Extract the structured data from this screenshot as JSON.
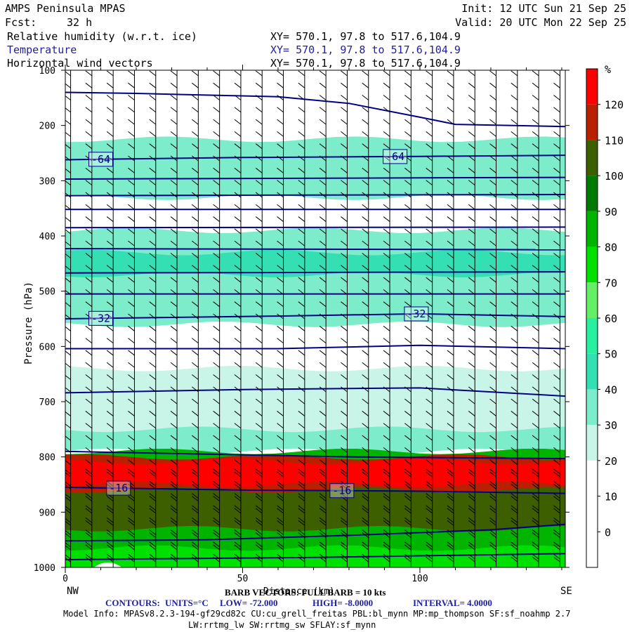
{
  "header": {
    "title": "AMPS Peninsula MPAS",
    "fcst_label": "Fcst:",
    "fcst_value": "32 h",
    "init": "Init: 12 UTC Sun 21 Sep 25",
    "valid": "Valid: 20 UTC Mon 22 Sep 25",
    "fields": [
      {
        "name": "Relative humidity (w.r.t. ice)",
        "xy": "XY= 570.1, 97.8 to 517.6,104.9"
      },
      {
        "name": "Temperature",
        "xy": "XY= 570.1, 97.8 to 517.6,104.9"
      },
      {
        "name": "Horizontal wind vectors",
        "xy": "XY= 570.1, 97.8 to 517.6,104.9"
      }
    ]
  },
  "colors": {
    "contour": "#000088",
    "barb": "#000000",
    "header_blue": "#1f1f9e"
  },
  "chart_data": {
    "type": "heatmap",
    "ylabel": "Pressure (hPa)",
    "xlabel": "Distance (km)",
    "x_end_labels": {
      "left": "NW",
      "right": "SE"
    },
    "x_ticks": [
      0,
      50,
      100
    ],
    "y_ticks": [
      100,
      200,
      300,
      400,
      500,
      600,
      700,
      800,
      900,
      1000
    ],
    "xlim": [
      0,
      141
    ],
    "ylim": [
      1000,
      100
    ],
    "colorbar": {
      "unit": "%",
      "levels": [
        0,
        10,
        20,
        30,
        40,
        50,
        60,
        70,
        80,
        90,
        100,
        110,
        120
      ],
      "colors": [
        "#ffffff",
        "#ffffff",
        "#ffffff",
        "#c8f5e8",
        "#7ceccb",
        "#33dfb3",
        "#29f0a0",
        "#66ee66",
        "#00e000",
        "#00b400",
        "#007a00",
        "#3e5f00",
        "#b82000",
        "#ff0000"
      ]
    },
    "rh_layers": [
      {
        "bottom": 310,
        "top": 240,
        "color": "#33dfb3",
        "x0": 0,
        "x1": 141
      },
      {
        "bottom": 330,
        "top": 225,
        "color": "#7ceccb",
        "x0": 0,
        "x1": 141
      },
      {
        "bottom": 560,
        "top": 390,
        "color": "#7ceccb",
        "x0": 0,
        "x1": 141
      },
      {
        "bottom": 470,
        "top": 430,
        "color": "#33dfb3",
        "x0": 0,
        "x1": 141
      },
      {
        "bottom": 760,
        "top": 640,
        "color": "#c8f5e8",
        "x0": 0,
        "x1": 141
      },
      {
        "bottom": 790,
        "top": 750,
        "color": "#7ceccb",
        "x0": 0,
        "x1": 141
      },
      {
        "bottom": 1000,
        "top": 790,
        "color": "#00b400",
        "x0": 0,
        "x1": 141
      },
      {
        "bottom": 1000,
        "top": 815,
        "color": "#3e5f00",
        "x0": 0,
        "x1": 141
      },
      {
        "bottom": 860,
        "top": 800,
        "color": "#b82000",
        "x0": 0,
        "x1": 141
      },
      {
        "bottom": 850,
        "top": 808,
        "color": "#ff0000",
        "x0": 0,
        "x1": 141
      },
      {
        "bottom": 1000,
        "top": 930,
        "color": "#00b400",
        "x0": 0,
        "x1": 141
      },
      {
        "bottom": 1000,
        "top": 965,
        "color": "#00e000",
        "x0": 0,
        "x1": 141
      }
    ],
    "temperature_contours": [
      {
        "points": [
          [
            0,
            140
          ],
          [
            20,
            142
          ],
          [
            60,
            148
          ],
          [
            80,
            160
          ],
          [
            100,
            185
          ],
          [
            110,
            198
          ],
          [
            141,
            202
          ]
        ]
      },
      {
        "label": "-64",
        "label_x": [
          10,
          93
        ],
        "points": [
          [
            0,
            262
          ],
          [
            50,
            258
          ],
          [
            100,
            256
          ],
          [
            141,
            254
          ]
        ]
      },
      {
        "points": [
          [
            0,
            297
          ],
          [
            141,
            294
          ]
        ]
      },
      {
        "points": [
          [
            0,
            327
          ],
          [
            141,
            325
          ]
        ]
      },
      {
        "points": [
          [
            0,
            352
          ],
          [
            141,
            352
          ]
        ]
      },
      {
        "points": [
          [
            0,
            385
          ],
          [
            141,
            384
          ]
        ]
      },
      {
        "points": [
          [
            0,
            423
          ],
          [
            141,
            425
          ]
        ]
      },
      {
        "points": [
          [
            0,
            467
          ],
          [
            141,
            465
          ]
        ]
      },
      {
        "points": [
          [
            0,
            505
          ],
          [
            141,
            505
          ]
        ]
      },
      {
        "label": "-32",
        "label_x": [
          10,
          99
        ],
        "points": [
          [
            0,
            550
          ],
          [
            60,
            545
          ],
          [
            100,
            541
          ],
          [
            141,
            546
          ]
        ]
      },
      {
        "points": [
          [
            0,
            604
          ],
          [
            60,
            604
          ],
          [
            100,
            598
          ],
          [
            141,
            604
          ]
        ]
      },
      {
        "points": [
          [
            0,
            684
          ],
          [
            50,
            678
          ],
          [
            100,
            675
          ],
          [
            141,
            690
          ]
        ]
      },
      {
        "points": [
          [
            0,
            790
          ],
          [
            40,
            795
          ],
          [
            80,
            800
          ],
          [
            120,
            802
          ],
          [
            141,
            803
          ]
        ]
      },
      {
        "label": "-16",
        "label_x": [
          15,
          78
        ],
        "points": [
          [
            0,
            855
          ],
          [
            50,
            860
          ],
          [
            100,
            862
          ],
          [
            141,
            866
          ]
        ]
      },
      {
        "points": [
          [
            0,
            952
          ],
          [
            40,
            950
          ],
          [
            80,
            942
          ],
          [
            120,
            932
          ],
          [
            141,
            922
          ]
        ]
      },
      {
        "points": [
          [
            0,
            986
          ],
          [
            70,
            982
          ],
          [
            141,
            975
          ]
        ]
      }
    ],
    "barb_spacing_km": 6.0,
    "barb_key": "BARB VECTORS: FULL BARB = 10 kts",
    "contour_info": {
      "label": "CONTOURS:",
      "units": "UNITS=°C",
      "low": "LOW= -72.000",
      "high": "HIGH= -8.0000",
      "interval": "INTERVAL= 4.0000"
    }
  },
  "footer": {
    "model_info": "Model Info: MPASv8.2.3-194-gf29cd82c CU:cu_grell_freitas PBL:bl_mynn MP:mp_thompson SF:sf_noahmp 2.7",
    "radiation": "LW:rrtmg_lw SW:rrtmg_sw SFLAY:sf_mynn"
  }
}
